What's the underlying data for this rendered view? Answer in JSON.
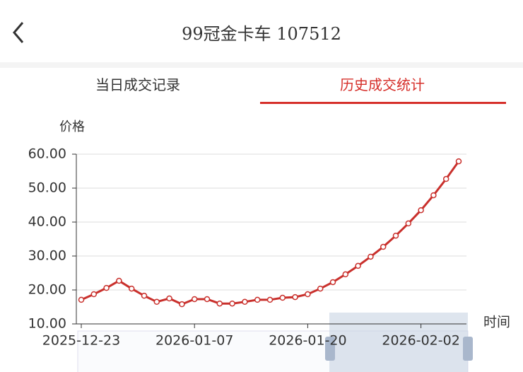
{
  "header": {
    "title": "99冠金卡车 107512"
  },
  "tabs": [
    "当日成交记录",
    "历史成交统计"
  ],
  "chart_data": {
    "type": "line",
    "y_label": "价格",
    "x_label": "时间",
    "categories": [
      "2025-12-23",
      null,
      null,
      null,
      null,
      null,
      null,
      null,
      null,
      "2026-01-07",
      null,
      null,
      null,
      null,
      null,
      null,
      null,
      null,
      "2026-01-20",
      null,
      null,
      null,
      null,
      null,
      null,
      null,
      null,
      "2026-02-02",
      null,
      null,
      null
    ],
    "series": [
      {
        "color": "#c9302c",
        "values": [
          17.1,
          18.75,
          20.6,
          22.7,
          20.4,
          18.3,
          16.5,
          17.5,
          15.8,
          17.3,
          17.3,
          16.0,
          16.0,
          16.5,
          17.1,
          17.1,
          17.7,
          17.9,
          18.75,
          20.4,
          22.3,
          24.6,
          27.1,
          29.8,
          32.7,
          36.0,
          39.6,
          43.5,
          47.9,
          52.7,
          57.9
        ]
      }
    ],
    "ylim": [
      10,
      60
    ],
    "yticks": [
      {
        "value": 10,
        "label": "10.00"
      },
      {
        "value": 20,
        "label": "20.00"
      },
      {
        "value": 30,
        "label": "30.00"
      },
      {
        "value": 40,
        "label": "40.00"
      },
      {
        "value": 50,
        "label": "50.00"
      },
      {
        "value": 60,
        "label": "60.00"
      }
    ],
    "grid": true
  }
}
